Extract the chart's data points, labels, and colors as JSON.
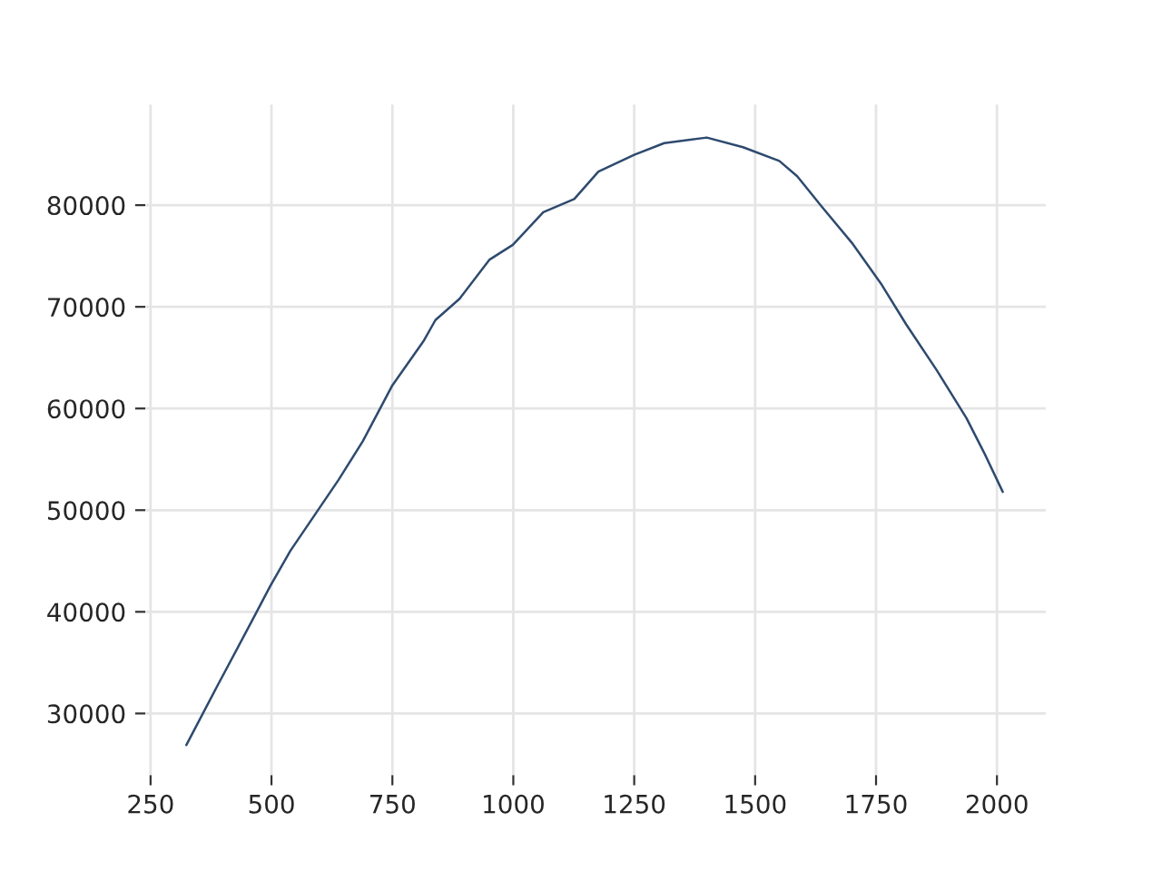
{
  "chart_data": {
    "type": "line",
    "series": [
      {
        "color": "#2e4a6e",
        "x": [
          324,
          389,
          464,
          497,
          539,
          589,
          639,
          689,
          749,
          814,
          839,
          889,
          951,
          999,
          1062,
          1126,
          1176,
          1250,
          1312,
          1400,
          1475,
          1550,
          1587,
          1637,
          1700,
          1762,
          1812,
          1875,
          1937,
          1975,
          2012
        ],
        "values": [
          26900,
          32800,
          39500,
          42500,
          46000,
          49500,
          53000,
          56800,
          62200,
          66600,
          68700,
          70800,
          74650,
          76100,
          79300,
          80600,
          83300,
          84950,
          86100,
          86650,
          85700,
          84350,
          82850,
          79900,
          76300,
          72150,
          68300,
          63800,
          59050,
          55500,
          51800
        ]
      }
    ],
    "xlim": [
      239,
      2101
    ],
    "ylim": [
      23930,
      89900
    ],
    "xticks": [
      250,
      500,
      750,
      1000,
      1250,
      1500,
      1750,
      2000
    ],
    "yticks": [
      30000,
      40000,
      50000,
      60000,
      70000,
      80000
    ],
    "grid": true,
    "legend": false
  }
}
